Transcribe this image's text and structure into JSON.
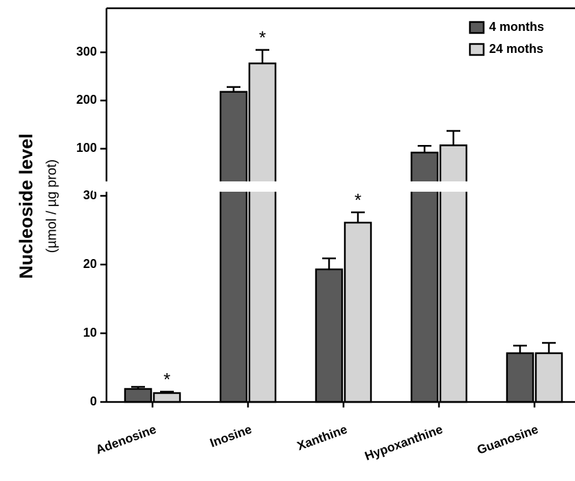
{
  "chart_data": {
    "type": "bar",
    "y_title": "Nucleoside level",
    "y_subtitle": "(µmol / µg  prot)",
    "categories": [
      "Adenosine",
      "Inosine",
      "Xanthine",
      "Hypoxanthine",
      "Guanosine"
    ],
    "series": [
      {
        "name": "4 months",
        "color": "#5a5a5a",
        "values": [
          1.9,
          218,
          19.3,
          92,
          7.1
        ],
        "errors": [
          0.3,
          10,
          1.6,
          14,
          1.1
        ]
      },
      {
        "name": "24 moths",
        "color": "#d4d4d4",
        "values": [
          1.3,
          277,
          26.1,
          107,
          7.1
        ],
        "errors": [
          0.2,
          28,
          1.5,
          30,
          1.5
        ],
        "markers": [
          "*",
          "*",
          "*",
          null,
          null
        ]
      }
    ],
    "y_segments": [
      {
        "ylim": [
          0,
          30
        ],
        "yticks": [
          0,
          10,
          20,
          30
        ]
      },
      {
        "ylim": [
          35,
          390
        ],
        "yticks": [
          100,
          200,
          300
        ]
      }
    ],
    "legend": "top-right"
  }
}
